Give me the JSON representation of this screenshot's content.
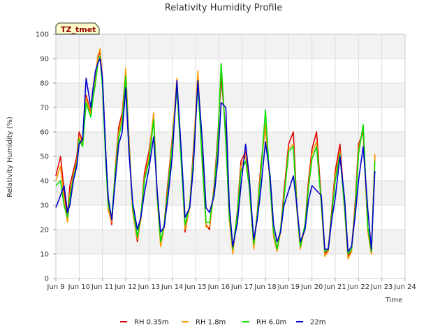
{
  "chart_data": {
    "type": "line",
    "title": "Relativity Humidity Profile",
    "xlabel": "Time",
    "ylabel": "Relativity Humidity (%)",
    "station_tag": "TZ_tmet",
    "ylim": [
      0,
      100
    ],
    "yticks": [
      0,
      10,
      20,
      30,
      40,
      50,
      60,
      70,
      80,
      90,
      100
    ],
    "xlim": [
      9,
      24
    ],
    "xticks": [
      {
        "value": 9,
        "label": "Jun 9"
      },
      {
        "value": 10,
        "label": "Jun 10"
      },
      {
        "value": 11,
        "label": "Jun 11"
      },
      {
        "value": 12,
        "label": "Jun 12"
      },
      {
        "value": 13,
        "label": "Jun 13"
      },
      {
        "value": 14,
        "label": "Jun 14"
      },
      {
        "value": 15,
        "label": "Jun 15"
      },
      {
        "value": 16,
        "label": "Jun 16"
      },
      {
        "value": 17,
        "label": "Jun 17"
      },
      {
        "value": 18,
        "label": "Jun 18"
      },
      {
        "value": 19,
        "label": "Jun 19"
      },
      {
        "value": 20,
        "label": "Jun 20"
      },
      {
        "value": 21,
        "label": "Jun 21"
      },
      {
        "value": 22,
        "label": "Jun 22"
      },
      {
        "value": 23,
        "label": "Jun 23"
      },
      {
        "value": 24,
        "label": "Jun 24"
      }
    ],
    "grid": true,
    "legend_position": "bottom",
    "series": [
      {
        "name": "RH 0.35m",
        "color": "#dd0000",
        "x": [
          9.0,
          9.2,
          9.35,
          9.5,
          9.6,
          9.75,
          9.9,
          10.0,
          10.15,
          10.3,
          10.5,
          10.6,
          10.7,
          10.8,
          10.9,
          11.0,
          11.15,
          11.25,
          11.4,
          11.55,
          11.7,
          11.85,
          12.0,
          12.15,
          12.3,
          12.5,
          12.65,
          12.8,
          13.0,
          13.2,
          13.35,
          13.5,
          13.65,
          13.8,
          14.0,
          14.2,
          14.4,
          14.55,
          14.75,
          14.9,
          15.1,
          15.3,
          15.45,
          15.6,
          15.8,
          15.95,
          16.1,
          16.3,
          16.45,
          16.6,
          16.8,
          16.95,
          17.15,
          17.3,
          17.5,
          17.65,
          17.8,
          18.0,
          18.2,
          18.35,
          18.5,
          18.65,
          18.8,
          19.0,
          19.2,
          19.35,
          19.5,
          19.7,
          19.85,
          20.0,
          20.2,
          20.4,
          20.55,
          20.7,
          20.85,
          21.0,
          21.2,
          21.4,
          21.55,
          21.7,
          21.85,
          22.0,
          22.2,
          22.4,
          22.55,
          22.7
        ],
        "values": [
          42,
          50,
          36,
          25,
          38,
          44,
          50,
          60,
          56,
          75,
          68,
          77,
          82,
          90,
          93,
          82,
          50,
          30,
          22,
          45,
          62,
          68,
          85,
          55,
          28,
          15,
          25,
          43,
          52,
          66,
          35,
          14,
          22,
          38,
          58,
          80,
          48,
          19,
          30,
          52,
          82,
          48,
          22,
          20,
          38,
          58,
          82,
          60,
          25,
          11,
          28,
          48,
          52,
          40,
          13,
          27,
          46,
          62,
          40,
          18,
          12,
          20,
          36,
          55,
          60,
          30,
          13,
          22,
          40,
          53,
          60,
          32,
          10,
          12,
          28,
          44,
          55,
          30,
          9,
          12,
          30,
          55,
          60,
          20,
          10,
          50
        ]
      },
      {
        "name": "RH 1.8m",
        "color": "#ff9900",
        "x": [
          9.0,
          9.2,
          9.35,
          9.5,
          9.6,
          9.75,
          9.9,
          10.0,
          10.15,
          10.3,
          10.5,
          10.6,
          10.7,
          10.8,
          10.9,
          11.0,
          11.15,
          11.25,
          11.4,
          11.55,
          11.7,
          11.85,
          12.0,
          12.15,
          12.3,
          12.5,
          12.65,
          12.8,
          13.0,
          13.2,
          13.35,
          13.5,
          13.65,
          13.8,
          14.0,
          14.2,
          14.4,
          14.55,
          14.75,
          14.9,
          15.1,
          15.3,
          15.45,
          15.6,
          15.8,
          15.95,
          16.1,
          16.3,
          16.45,
          16.6,
          16.8,
          16.95,
          17.15,
          17.3,
          17.5,
          17.65,
          17.8,
          18.0,
          18.2,
          18.35,
          18.5,
          18.65,
          18.8,
          19.0,
          19.2,
          19.35,
          19.5,
          19.7,
          19.85,
          20.0,
          20.2,
          20.4,
          20.55,
          20.7,
          20.85,
          21.0,
          21.2,
          21.4,
          21.55,
          21.7,
          21.85,
          22.0,
          22.2,
          22.4,
          22.55,
          22.7
        ],
        "values": [
          40,
          46,
          32,
          23,
          35,
          42,
          48,
          58,
          55,
          74,
          67,
          76,
          83,
          91,
          94,
          80,
          48,
          28,
          23,
          44,
          60,
          66,
          86,
          53,
          27,
          16,
          24,
          41,
          50,
          68,
          33,
          13,
          21,
          36,
          57,
          82,
          46,
          20,
          29,
          50,
          85,
          46,
          21,
          21,
          36,
          56,
          87,
          57,
          24,
          10,
          27,
          46,
          50,
          38,
          12,
          26,
          44,
          63,
          38,
          17,
          11,
          19,
          34,
          53,
          55,
          28,
          12,
          21,
          38,
          51,
          56,
          30,
          9,
          11,
          26,
          42,
          52,
          28,
          8,
          11,
          28,
          53,
          62,
          19,
          10,
          51
        ]
      },
      {
        "name": "RH 6.0m",
        "color": "#00dd00",
        "x": [
          9.0,
          9.2,
          9.35,
          9.5,
          9.6,
          9.75,
          9.9,
          10.0,
          10.15,
          10.3,
          10.5,
          10.6,
          10.7,
          10.8,
          10.9,
          11.0,
          11.15,
          11.25,
          11.4,
          11.55,
          11.7,
          11.85,
          12.0,
          12.15,
          12.3,
          12.5,
          12.65,
          12.8,
          13.0,
          13.2,
          13.35,
          13.5,
          13.65,
          13.8,
          14.0,
          14.2,
          14.4,
          14.55,
          14.75,
          14.9,
          15.1,
          15.3,
          15.45,
          15.6,
          15.8,
          15.95,
          16.1,
          16.3,
          16.45,
          16.6,
          16.8,
          16.95,
          17.15,
          17.3,
          17.5,
          17.65,
          17.8,
          18.0,
          18.2,
          18.35,
          18.5,
          18.65,
          18.8,
          19.0,
          19.2,
          19.35,
          19.5,
          19.7,
          19.85,
          20.0,
          20.2,
          20.4,
          20.55,
          20.7,
          20.85,
          21.0,
          21.2,
          21.4,
          21.55,
          21.7,
          21.85,
          22.0,
          22.2,
          22.4,
          22.55,
          22.7
        ],
        "values": [
          38,
          40,
          30,
          25,
          33,
          41,
          47,
          57,
          54,
          72,
          66,
          74,
          80,
          88,
          91,
          78,
          46,
          30,
          25,
          43,
          58,
          64,
          83,
          52,
          29,
          17,
          26,
          40,
          48,
          65,
          34,
          15,
          22,
          35,
          55,
          78,
          45,
          22,
          30,
          48,
          80,
          45,
          23,
          23,
          36,
          55,
          88,
          56,
          26,
          12,
          27,
          44,
          48,
          38,
          14,
          26,
          42,
          69,
          38,
          19,
          12,
          20,
          33,
          52,
          54,
          29,
          13,
          22,
          37,
          49,
          54,
          31,
          11,
          12,
          26,
          40,
          51,
          29,
          10,
          12,
          27,
          51,
          63,
          21,
          11,
          48
        ]
      },
      {
        "name": "22m",
        "color": "#0000cc",
        "x": [
          9.0,
          9.2,
          9.35,
          9.5,
          9.6,
          9.75,
          9.9,
          10.0,
          10.15,
          10.3,
          10.5,
          10.6,
          10.7,
          10.8,
          10.9,
          11.0,
          11.15,
          11.25,
          11.4,
          11.55,
          11.7,
          11.85,
          12.0,
          12.15,
          12.3,
          12.5,
          12.65,
          12.8,
          13.0,
          13.2,
          13.35,
          13.5,
          13.65,
          13.8,
          14.0,
          14.2,
          14.4,
          14.55,
          14.75,
          14.9,
          15.1,
          15.3,
          15.45,
          15.6,
          15.8,
          15.95,
          16.1,
          16.3,
          16.45,
          16.6,
          16.8,
          16.95,
          17.15,
          17.3,
          17.5,
          17.65,
          17.8,
          18.0,
          18.2,
          18.35,
          18.5,
          18.65,
          18.8,
          19.0,
          19.2,
          19.35,
          19.5,
          19.7,
          19.85,
          20.0,
          20.2,
          20.4,
          20.55,
          20.7,
          20.85,
          21.0,
          21.2,
          21.4,
          21.55,
          21.7,
          21.85,
          22.0,
          22.2,
          22.4,
          22.55,
          22.7
        ],
        "values": [
          29,
          34,
          38,
          27,
          30,
          40,
          46,
          55,
          57,
          82,
          70,
          78,
          85,
          88,
          90,
          82,
          50,
          33,
          24,
          40,
          55,
          60,
          78,
          50,
          31,
          20,
          25,
          35,
          45,
          58,
          36,
          19,
          21,
          32,
          50,
          81,
          50,
          25,
          29,
          45,
          81,
          55,
          29,
          27,
          34,
          48,
          72,
          70,
          30,
          13,
          23,
          38,
          55,
          42,
          16,
          24,
          36,
          56,
          42,
          22,
          15,
          19,
          30,
          36,
          42,
          30,
          15,
          20,
          32,
          38,
          36,
          34,
          12,
          12,
          24,
          33,
          50,
          33,
          11,
          13,
          25,
          40,
          54,
          28,
          12,
          44
        ]
      }
    ]
  }
}
